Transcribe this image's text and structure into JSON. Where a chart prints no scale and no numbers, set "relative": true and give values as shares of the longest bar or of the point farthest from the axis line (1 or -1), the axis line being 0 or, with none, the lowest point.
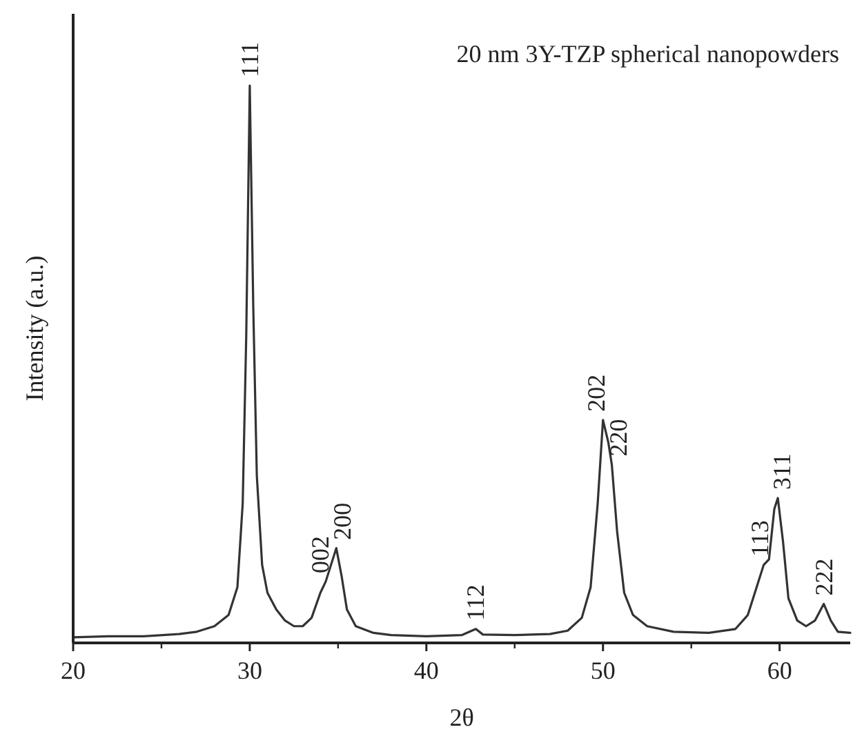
{
  "chart_data": {
    "type": "line",
    "relative": true,
    "xlabel": "2θ",
    "ylabel": "Intensity (a.u.)",
    "xlim": [
      20,
      64
    ],
    "xticks": [
      20,
      30,
      40,
      50,
      60
    ],
    "marker": "none",
    "line_style": "solid",
    "series": [
      {
        "color": "#333333",
        "x": [
          20,
          22,
          24,
          26,
          27,
          28,
          28.8,
          29.3,
          29.6,
          29.8,
          30.0,
          30.2,
          30.4,
          30.7,
          31,
          31.5,
          32,
          32.5,
          33,
          33.5,
          34,
          34.3,
          34.6,
          34.9,
          35.2,
          35.5,
          36,
          37,
          38,
          40,
          42,
          42.8,
          43.2,
          45,
          47,
          48,
          48.8,
          49.3,
          49.7,
          50.0,
          50.3,
          50.5,
          50.8,
          51.2,
          51.7,
          52.5,
          54,
          56,
          57.5,
          58.2,
          58.7,
          59.1,
          59.4,
          59.7,
          59.9,
          60.2,
          60.5,
          61,
          61.5,
          62,
          62.5,
          62.9,
          63.3,
          64
        ],
        "values": [
          0.01,
          0.012,
          0.012,
          0.016,
          0.02,
          0.03,
          0.05,
          0.1,
          0.25,
          0.55,
          1.0,
          0.6,
          0.3,
          0.14,
          0.09,
          0.06,
          0.04,
          0.03,
          0.03,
          0.045,
          0.09,
          0.11,
          0.14,
          0.17,
          0.12,
          0.06,
          0.03,
          0.018,
          0.014,
          0.012,
          0.014,
          0.025,
          0.015,
          0.014,
          0.016,
          0.022,
          0.045,
          0.1,
          0.25,
          0.4,
          0.36,
          0.32,
          0.2,
          0.09,
          0.05,
          0.03,
          0.02,
          0.018,
          0.025,
          0.05,
          0.1,
          0.14,
          0.15,
          0.24,
          0.26,
          0.18,
          0.08,
          0.04,
          0.03,
          0.04,
          0.07,
          0.04,
          0.02,
          0.018
        ]
      }
    ],
    "annotations": [
      "20 nm 3Y-TZP spherical nanopowders",
      {
        "text": "111",
        "x": 30.0,
        "y": 1.0
      },
      {
        "text": "002",
        "x": 34.3,
        "y": 0.11
      },
      {
        "text": "200",
        "x": 34.9,
        "y": 0.17
      },
      {
        "text": "112",
        "x": 42.8,
        "y": 0.025
      },
      {
        "text": "202",
        "x": 50.0,
        "y": 0.4
      },
      {
        "text": "220",
        "x": 50.5,
        "y": 0.32
      },
      {
        "text": "113",
        "x": 59.1,
        "y": 0.14
      },
      {
        "text": "311",
        "x": 59.9,
        "y": 0.26
      },
      {
        "text": "222",
        "x": 62.5,
        "y": 0.07
      }
    ]
  }
}
